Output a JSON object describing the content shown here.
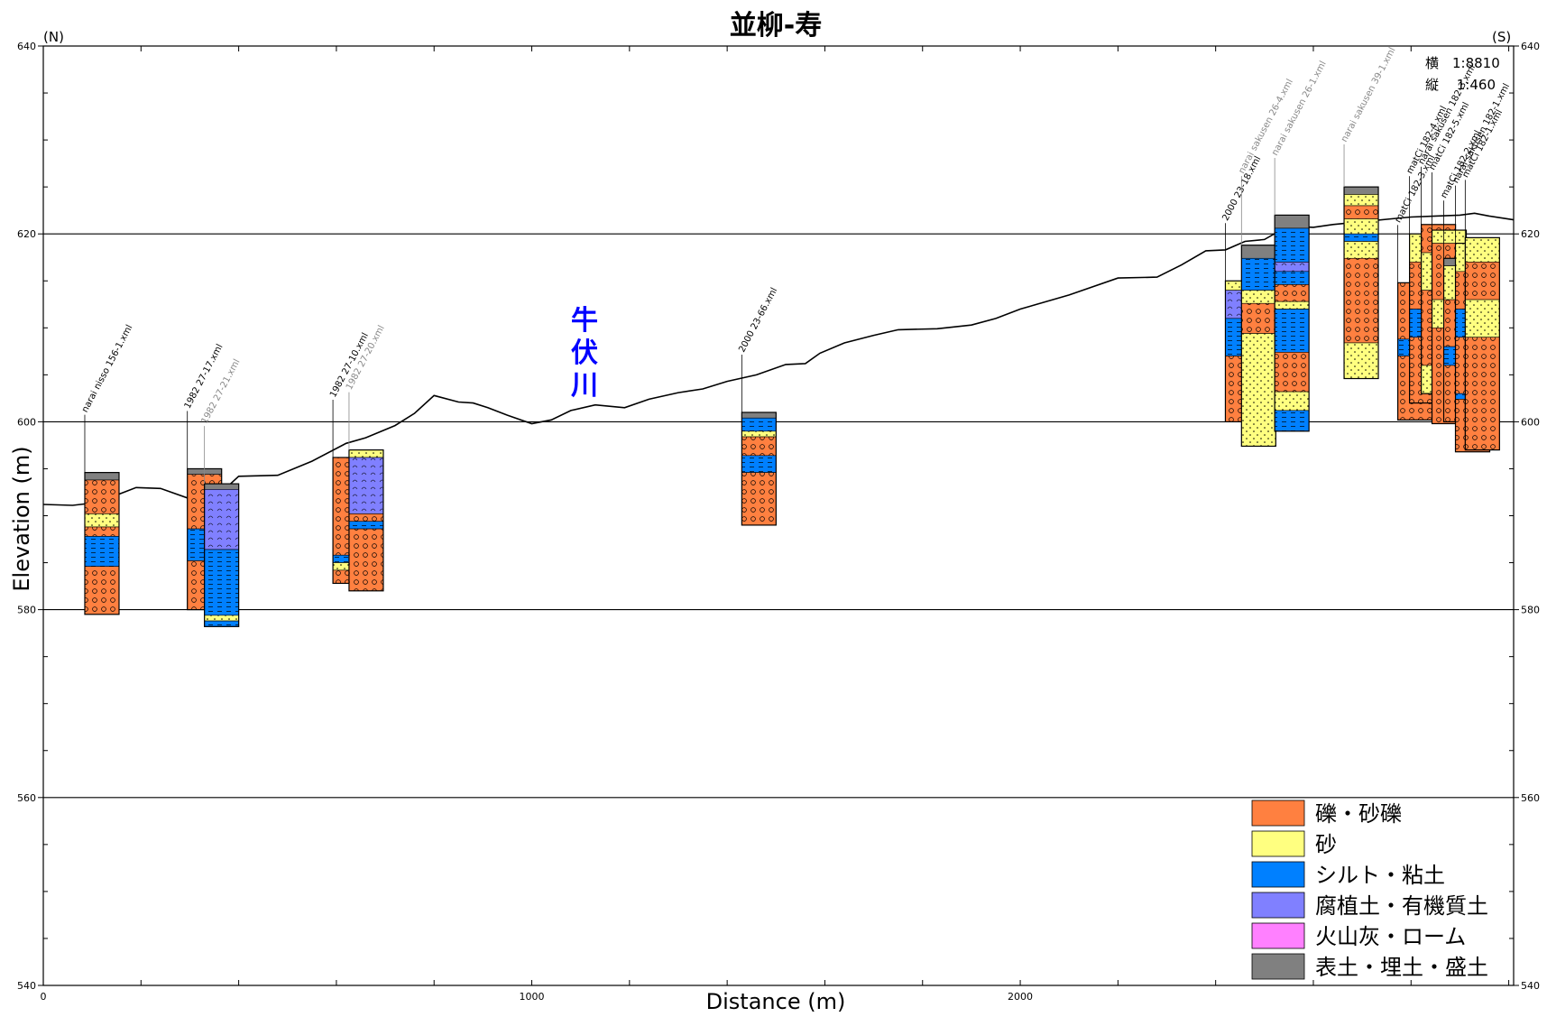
{
  "title": "並柳-寿",
  "direction_left": "(N)",
  "direction_right": "(S)",
  "scale": {
    "horizontal": "横　1:8810",
    "vertical": "縦　 1:460"
  },
  "river_label": "牛伏川",
  "axes": {
    "x_label": "Distance (m)",
    "y_label": "Elevation (m)",
    "x_ticks": [
      0,
      1000,
      2000
    ],
    "y_ticks": [
      540,
      560,
      580,
      600,
      620,
      640
    ],
    "xlim": [
      0,
      3010
    ],
    "ylim": [
      540,
      640
    ]
  },
  "legend": [
    {
      "label": "礫・砂礫",
      "color": "#ff8040",
      "pattern": "circles"
    },
    {
      "label": "砂",
      "color": "#ffff80",
      "pattern": "dots"
    },
    {
      "label": "シルト・粘土",
      "color": "#0080ff",
      "pattern": "dashes"
    },
    {
      "label": "腐植土・有機質土",
      "color": "#8080ff",
      "pattern": "scallops"
    },
    {
      "label": "火山灰・ローム",
      "color": "#ff80ff",
      "pattern": "none"
    },
    {
      "label": "表土・埋土・盛土",
      "color": "#808080",
      "pattern": "none"
    }
  ],
  "chart_data": {
    "type": "cross-section",
    "title": "並柳-寿",
    "xlabel": "Distance (m)",
    "ylabel": "Elevation (m)",
    "xlim": [
      0,
      3010
    ],
    "ylim": [
      540,
      640
    ],
    "grid_y": [
      560,
      580,
      600,
      620
    ],
    "ground_surface": {
      "x": [
        0,
        60,
        110,
        190,
        240,
        300,
        350,
        400,
        480,
        550,
        620,
        660,
        720,
        760,
        800,
        850,
        880,
        910,
        950,
        1000,
        1040,
        1080,
        1130,
        1190,
        1240,
        1300,
        1350,
        1400,
        1460,
        1520,
        1560,
        1590,
        1640,
        1700,
        1750,
        1830,
        1900,
        1950,
        2000,
        2100,
        2200,
        2280,
        2330,
        2380,
        2420,
        2460,
        2500,
        2530,
        2560,
        2600,
        2640,
        2680,
        2720,
        2760,
        2800,
        2850,
        2900,
        2930,
        2960,
        3010
      ],
      "y": [
        591.2,
        591.1,
        591.4,
        593.0,
        592.9,
        591.8,
        591.8,
        594.2,
        594.3,
        595.8,
        597.7,
        598.3,
        599.6,
        600.9,
        602.8,
        602.1,
        602.0,
        601.5,
        600.7,
        599.8,
        600.2,
        601.2,
        601.8,
        601.5,
        602.4,
        603.1,
        603.5,
        604.3,
        605.0,
        606.1,
        606.2,
        607.3,
        608.4,
        609.2,
        609.8,
        609.9,
        610.3,
        611.0,
        612.0,
        613.5,
        615.3,
        615.4,
        616.7,
        618.2,
        618.3,
        619.2,
        619.4,
        620.3,
        620.8,
        620.7,
        621.0,
        621.2,
        621.4,
        621.6,
        621.8,
        621.9,
        622.0,
        622.2,
        621.9,
        621.5
      ]
    },
    "boreholes": [
      {
        "name": "narai nisso 156-1.xml",
        "x": 120,
        "top": 594.6,
        "bottom": 579.5,
        "label_color": "#000000",
        "layers": [
          {
            "top": 594.6,
            "bottom": 593.8,
            "soil": "表土・埋土・盛土"
          },
          {
            "top": 593.8,
            "bottom": 590.2,
            "soil": "礫・砂礫"
          },
          {
            "top": 590.2,
            "bottom": 588.8,
            "soil": "砂"
          },
          {
            "top": 588.8,
            "bottom": 587.8,
            "soil": "礫・砂礫"
          },
          {
            "top": 587.8,
            "bottom": 584.6,
            "soil": "シルト・粘土"
          },
          {
            "top": 584.6,
            "bottom": 579.5,
            "soil": "礫・砂礫"
          }
        ]
      },
      {
        "name": "1982 27-17.xml",
        "x": 330,
        "top": 595.0,
        "bottom": 580.0,
        "label_color": "#000000",
        "layers": [
          {
            "top": 595.0,
            "bottom": 594.4,
            "soil": "表土・埋土・盛土"
          },
          {
            "top": 594.4,
            "bottom": 588.6,
            "soil": "礫・砂礫"
          },
          {
            "top": 588.6,
            "bottom": 585.2,
            "soil": "シルト・粘土"
          },
          {
            "top": 585.2,
            "bottom": 580.0,
            "soil": "礫・砂礫"
          }
        ]
      },
      {
        "name": "1982 27-21.xml",
        "x": 365,
        "top": 593.4,
        "bottom": 578.2,
        "label_color": "#888888",
        "layers": [
          {
            "top": 593.4,
            "bottom": 592.8,
            "soil": "表土・埋土・盛土"
          },
          {
            "top": 592.8,
            "bottom": 586.4,
            "soil": "腐植土・有機質土"
          },
          {
            "top": 586.4,
            "bottom": 579.4,
            "soil": "シルト・粘土"
          },
          {
            "top": 579.4,
            "bottom": 578.8,
            "soil": "砂"
          },
          {
            "top": 578.8,
            "bottom": 578.2,
            "soil": "シルト・粘土"
          }
        ]
      },
      {
        "name": "1982 27-10.xml",
        "x": 628,
        "top": 596.2,
        "bottom": 582.8,
        "label_color": "#000000",
        "layers": [
          {
            "top": 596.2,
            "bottom": 585.8,
            "soil": "礫・砂礫"
          },
          {
            "top": 585.8,
            "bottom": 585.0,
            "soil": "シルト・粘土"
          },
          {
            "top": 585.0,
            "bottom": 584.2,
            "soil": "砂"
          },
          {
            "top": 584.2,
            "bottom": 582.8,
            "soil": "礫・砂礫"
          }
        ]
      },
      {
        "name": "1982 27-20.xml",
        "x": 661,
        "top": 597.0,
        "bottom": 582.0,
        "label_color": "#888888",
        "layers": [
          {
            "top": 597.0,
            "bottom": 596.2,
            "soil": "砂"
          },
          {
            "top": 596.2,
            "bottom": 590.2,
            "soil": "腐植土・有機質土"
          },
          {
            "top": 590.2,
            "bottom": 589.4,
            "soil": "礫・砂礫"
          },
          {
            "top": 589.4,
            "bottom": 588.6,
            "soil": "シルト・粘土"
          },
          {
            "top": 588.6,
            "bottom": 582.0,
            "soil": "礫・砂礫"
          }
        ]
      },
      {
        "name": "2000 23-66.xml",
        "x": 1465,
        "top": 601.0,
        "bottom": 589.0,
        "label_color": "#000000",
        "layers": [
          {
            "top": 601.0,
            "bottom": 600.4,
            "soil": "表土・埋土・盛土"
          },
          {
            "top": 600.4,
            "bottom": 599.0,
            "soil": "シルト・粘土"
          },
          {
            "top": 599.0,
            "bottom": 598.4,
            "soil": "砂"
          },
          {
            "top": 598.4,
            "bottom": 596.4,
            "soil": "礫・砂礫"
          },
          {
            "top": 596.4,
            "bottom": 594.6,
            "soil": "シルト・粘土"
          },
          {
            "top": 594.6,
            "bottom": 589.0,
            "soil": "礫・砂礫"
          }
        ]
      },
      {
        "name": "2000 23-18.xml",
        "x": 2455,
        "top": 615.0,
        "bottom": 600.0,
        "label_color": "#000000",
        "layers": [
          {
            "top": 615.0,
            "bottom": 614.0,
            "soil": "砂"
          },
          {
            "top": 614.0,
            "bottom": 611.0,
            "soil": "腐植土・有機質土"
          },
          {
            "top": 611.0,
            "bottom": 607.0,
            "soil": "シルト・粘土"
          },
          {
            "top": 607.0,
            "bottom": 600.0,
            "soil": "礫・砂礫"
          }
        ]
      },
      {
        "name": "narai sakusen 26-4.xml",
        "x": 2488,
        "top": 618.8,
        "bottom": 597.4,
        "label_color": "#888888",
        "layers": [
          {
            "top": 618.8,
            "bottom": 617.4,
            "soil": "表土・埋土・盛土"
          },
          {
            "top": 617.4,
            "bottom": 614.0,
            "soil": "シルト・粘土"
          },
          {
            "top": 614.0,
            "bottom": 612.6,
            "soil": "砂"
          },
          {
            "top": 612.6,
            "bottom": 609.4,
            "soil": "礫・砂礫"
          },
          {
            "top": 609.4,
            "bottom": 597.4,
            "soil": "砂"
          }
        ]
      },
      {
        "name": "narai sakusen 26-1.xml",
        "x": 2556,
        "top": 622.0,
        "bottom": 599.0,
        "label_color": "#888888",
        "layers": [
          {
            "top": 622.0,
            "bottom": 620.6,
            "soil": "表土・埋土・盛土"
          },
          {
            "top": 620.6,
            "bottom": 617.0,
            "soil": "シルト・粘土"
          },
          {
            "top": 617.0,
            "bottom": 616.0,
            "soil": "腐植土・有機質土"
          },
          {
            "top": 616.0,
            "bottom": 614.6,
            "soil": "シルト・粘土"
          },
          {
            "top": 614.6,
            "bottom": 612.8,
            "soil": "礫・砂礫"
          },
          {
            "top": 612.8,
            "bottom": 612.0,
            "soil": "砂"
          },
          {
            "top": 612.0,
            "bottom": 607.4,
            "soil": "シルト・粘土"
          },
          {
            "top": 607.4,
            "bottom": 603.2,
            "soil": "礫・砂礫"
          },
          {
            "top": 603.2,
            "bottom": 601.2,
            "soil": "砂"
          },
          {
            "top": 601.2,
            "bottom": 599.0,
            "soil": "シルト・粘土"
          }
        ]
      },
      {
        "name": "narai sakusen 39-1.xml",
        "x": 2698,
        "top": 625.0,
        "bottom": 604.6,
        "label_color": "#888888",
        "layers": [
          {
            "top": 625.0,
            "bottom": 624.2,
            "soil": "表土・埋土・盛土"
          },
          {
            "top": 624.2,
            "bottom": 623.0,
            "soil": "砂"
          },
          {
            "top": 623.0,
            "bottom": 621.6,
            "soil": "礫・砂礫"
          },
          {
            "top": 621.6,
            "bottom": 620.0,
            "soil": "砂"
          },
          {
            "top": 620.0,
            "bottom": 619.2,
            "soil": "シルト・粘土"
          },
          {
            "top": 619.2,
            "bottom": 617.4,
            "soil": "砂"
          },
          {
            "top": 617.4,
            "bottom": 608.4,
            "soil": "礫・砂礫"
          },
          {
            "top": 608.4,
            "bottom": 604.6,
            "soil": "砂"
          }
        ]
      },
      {
        "name": "matCi 182-3.xml",
        "x": 2808,
        "top": 614.8,
        "bottom": 600.2,
        "label_color": "#000000",
        "layers": [
          {
            "top": 614.8,
            "bottom": 608.8,
            "soil": "礫・砂礫"
          },
          {
            "top": 608.8,
            "bottom": 607.0,
            "soil": "シルト・粘土"
          },
          {
            "top": 607.0,
            "bottom": 600.2,
            "soil": "礫・砂礫"
          }
        ]
      },
      {
        "name": "matCi 182-4.xml",
        "x": 2832,
        "top": 620.0,
        "bottom": 602.0,
        "label_color": "#000000",
        "layers": [
          {
            "top": 620.0,
            "bottom": 617.0,
            "soil": "砂"
          },
          {
            "top": 617.0,
            "bottom": 612.0,
            "soil": "礫・砂礫"
          },
          {
            "top": 612.0,
            "bottom": 609.0,
            "soil": "シルト・粘土"
          },
          {
            "top": 609.0,
            "bottom": 602.0,
            "soil": "礫・砂礫"
          }
        ]
      },
      {
        "name": "narai sakusen 182-3.xml",
        "x": 2856,
        "top": 621.0,
        "bottom": 603.0,
        "label_color": "#000000",
        "layers": [
          {
            "top": 621.0,
            "bottom": 618.0,
            "soil": "礫・砂礫"
          },
          {
            "top": 618.0,
            "bottom": 614.0,
            "soil": "砂"
          },
          {
            "top": 614.0,
            "bottom": 606.0,
            "soil": "礫・砂礫"
          },
          {
            "top": 606.0,
            "bottom": 603.0,
            "soil": "砂"
          }
        ]
      },
      {
        "name": "matCi 182-5.xml",
        "x": 2878,
        "top": 620.4,
        "bottom": 599.8,
        "label_color": "#000000",
        "layers": [
          {
            "top": 620.4,
            "bottom": 619.0,
            "soil": "砂"
          },
          {
            "top": 619.0,
            "bottom": 613.0,
            "soil": "礫・砂礫"
          },
          {
            "top": 613.0,
            "bottom": 610.0,
            "soil": "砂"
          },
          {
            "top": 610.0,
            "bottom": 599.8,
            "soil": "礫・砂礫"
          }
        ]
      },
      {
        "name": "matCi 182-2.xml",
        "x": 2902,
        "top": 617.4,
        "bottom": 600.0,
        "label_color": "#000000",
        "layers": [
          {
            "top": 617.4,
            "bottom": 616.6,
            "soil": "表土・埋土・盛土"
          },
          {
            "top": 616.6,
            "bottom": 613.0,
            "soil": "砂"
          },
          {
            "top": 613.0,
            "bottom": 608.0,
            "soil": "礫・砂礫"
          },
          {
            "top": 608.0,
            "bottom": 606.0,
            "soil": "シルト・粘土"
          },
          {
            "top": 606.0,
            "bottom": 600.0,
            "soil": "礫・砂礫"
          }
        ]
      },
      {
        "name": "narai sakusen 182-1.xml",
        "x": 2926,
        "top": 619.0,
        "bottom": 596.8,
        "label_color": "#000000",
        "layers": [
          {
            "top": 619.0,
            "bottom": 616.0,
            "soil": "砂"
          },
          {
            "top": 616.0,
            "bottom": 612.0,
            "soil": "礫・砂礫"
          },
          {
            "top": 612.0,
            "bottom": 609.0,
            "soil": "シルト・粘土"
          },
          {
            "top": 609.0,
            "bottom": 603.0,
            "soil": "礫・砂礫"
          },
          {
            "top": 603.0,
            "bottom": 602.4,
            "soil": "シルト・粘土"
          },
          {
            "top": 602.4,
            "bottom": 596.8,
            "soil": "礫・砂礫"
          }
        ]
      },
      {
        "name": "matCi 182-1.xml",
        "x": 2946,
        "top": 619.6,
        "bottom": 597.0,
        "label_color": "#000000",
        "layers": [
          {
            "top": 619.6,
            "bottom": 617.0,
            "soil": "砂"
          },
          {
            "top": 617.0,
            "bottom": 613.0,
            "soil": "礫・砂礫"
          },
          {
            "top": 613.0,
            "bottom": 609.0,
            "soil": "砂"
          },
          {
            "top": 609.0,
            "bottom": 597.0,
            "soil": "礫・砂礫"
          }
        ]
      }
    ]
  }
}
